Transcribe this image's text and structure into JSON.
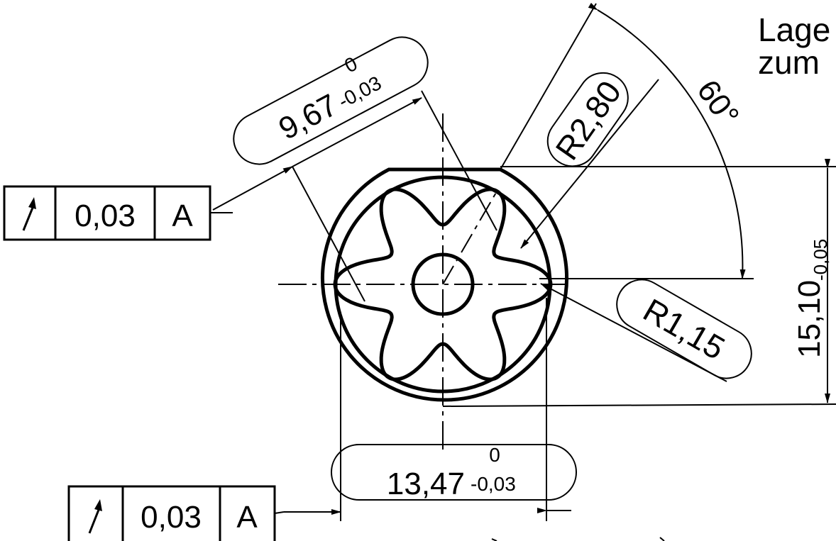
{
  "drawing": {
    "side_note": {
      "line1": "Lage",
      "line2": "zum"
    },
    "angle_label": "60°",
    "radius_large": "R2,80",
    "radius_small": "R1,15",
    "dim_diagonal": {
      "value": "9,67",
      "upper": "0",
      "lower": "-0,03"
    },
    "dim_bottom": {
      "value": "13,47",
      "upper": "0",
      "lower": "-0,03"
    },
    "dim_right": {
      "value": "15,10",
      "tolerance": "-0,05"
    },
    "frame_top": {
      "symbol": "circular-runout",
      "tolerance": "0,03",
      "datum": "A"
    },
    "frame_bottom": {
      "symbol": "circular-runout",
      "tolerance": "0,03",
      "datum": "A"
    }
  },
  "colors": {
    "ink": "#000000",
    "paper": "#ffffff"
  }
}
